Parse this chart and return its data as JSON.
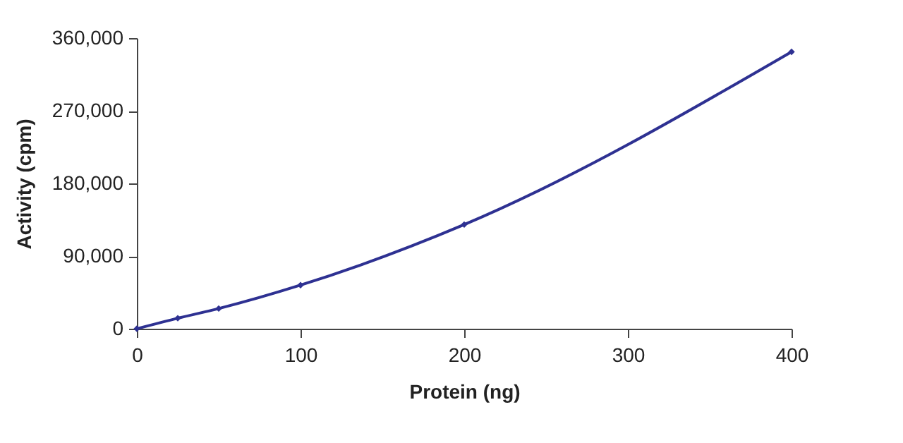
{
  "chart_data": {
    "type": "line",
    "xlabel": "Protein (ng)",
    "ylabel": "Activity (cpm)",
    "x": [
      0,
      25,
      50,
      100,
      200,
      400
    ],
    "series": [
      {
        "color": "#2e3192",
        "values": [
          0,
          13000,
          25000,
          54000,
          129000,
          343000
        ]
      }
    ],
    "xlim": [
      0,
      400
    ],
    "xticks": [
      0,
      100,
      200,
      300,
      400
    ],
    "ylim": [
      0,
      360000
    ],
    "yticks": [
      0,
      {
        "value": 90000,
        "label": "90,000"
      },
      {
        "value": 180000,
        "label": "180,000"
      },
      {
        "value": 270000,
        "label": "270,000"
      },
      {
        "value": 360000,
        "label": "360,000"
      }
    ],
    "grid": false,
    "legend": false,
    "marker": "diamond",
    "line_style": "solid"
  }
}
